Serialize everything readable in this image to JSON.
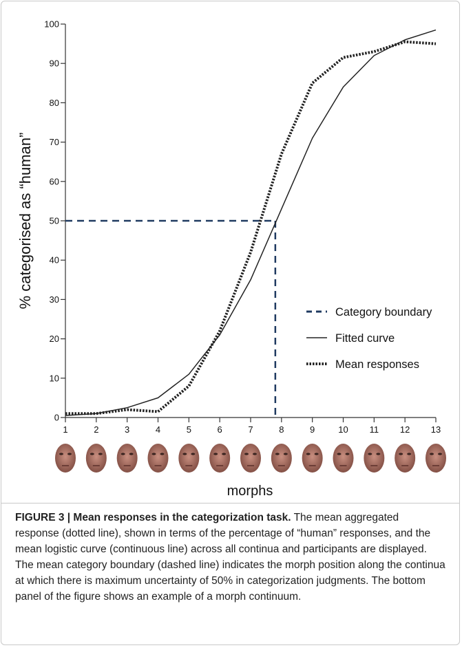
{
  "chart_data": {
    "type": "line",
    "ylabel": "% categorised as “human”",
    "xlabel": "morphs",
    "x": [
      1,
      2,
      3,
      4,
      5,
      6,
      7,
      8,
      9,
      10,
      11,
      12,
      13
    ],
    "xlim": [
      1,
      13
    ],
    "xticks": [
      1,
      2,
      3,
      4,
      5,
      6,
      7,
      8,
      9,
      10,
      11,
      12,
      13
    ],
    "ylim": [
      0,
      100
    ],
    "yticks": [
      0,
      10,
      20,
      30,
      40,
      50,
      60,
      70,
      80,
      90,
      100
    ],
    "boundary": {
      "name": "Category boundary",
      "color": "#1f3a60",
      "x": 7.8,
      "y": 50
    },
    "series": [
      {
        "name": "Fitted curve",
        "color": "#222222",
        "style": "solid",
        "values": [
          0.5,
          1,
          2.5,
          5,
          11,
          21,
          35,
          53,
          71,
          84,
          92,
          96,
          98.5
        ]
      },
      {
        "name": "Mean responses",
        "color": "#222222",
        "style": "dotted",
        "values": [
          1,
          1,
          2,
          1.5,
          8,
          22,
          42,
          67,
          85,
          91.5,
          93,
          95.5,
          95
        ]
      }
    ],
    "legend": "right"
  },
  "caption": {
    "label": "FIGURE 3 | Mean responses in the categorization task.",
    "text": "The mean aggregated response (dotted line), shown in terms of the percentage of “human” responses, and the mean logistic curve (continuous line) across all continua and participants are displayed. The mean category boundary (dashed line) indicates the morph position along the continua at which there is maximum uncertainty of 50% in categorization judgments. The bottom panel of the figure shows an example of a morph continuum."
  }
}
